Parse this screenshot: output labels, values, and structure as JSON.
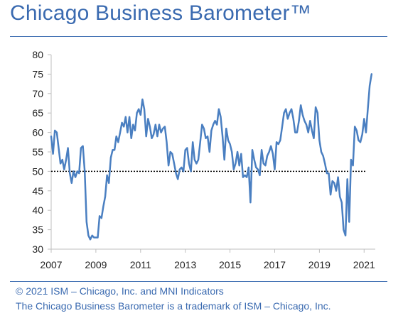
{
  "title": "Chicago Business Barometer™",
  "footer": {
    "line1": "© 2021 ISM – Chicago, Inc. and MNI Indicators",
    "line2": "The Chicago Business Barometer is a trademark of ISM – Chicago, Inc."
  },
  "colors": {
    "brand": "#3a6ab0",
    "series": "#4a7fc1",
    "reference": "#000000"
  },
  "chart_data": {
    "type": "line",
    "title": "",
    "xlabel": "",
    "ylabel": "",
    "ylim": [
      30,
      80
    ],
    "xlim": [
      2007.0,
      2021.5
    ],
    "yticks": [
      "30",
      "35",
      "40",
      "45",
      "50",
      "55",
      "60",
      "65",
      "70",
      "75",
      "80"
    ],
    "xticks": [
      "2007",
      "2009",
      "2011",
      "2013",
      "2015",
      "2017",
      "2019",
      "2021"
    ],
    "grid": false,
    "reference_line": {
      "y": 50,
      "style": "dotted"
    },
    "series": [
      {
        "x": [
          "2007-01",
          "2007-02",
          "2007-03",
          "2007-04",
          "2007-05",
          "2007-06",
          "2007-07",
          "2007-08",
          "2007-09",
          "2007-10",
          "2007-11",
          "2007-12",
          "2008-01",
          "2008-02",
          "2008-03",
          "2008-04",
          "2008-05",
          "2008-06",
          "2008-07",
          "2008-08",
          "2008-09",
          "2008-10",
          "2008-11",
          "2008-12",
          "2009-01",
          "2009-02",
          "2009-03",
          "2009-04",
          "2009-05",
          "2009-06",
          "2009-07",
          "2009-08",
          "2009-09",
          "2009-10",
          "2009-11",
          "2009-12",
          "2010-01",
          "2010-02",
          "2010-03",
          "2010-04",
          "2010-05",
          "2010-06",
          "2010-07",
          "2010-08",
          "2010-09",
          "2010-10",
          "2010-11",
          "2010-12",
          "2011-01",
          "2011-02",
          "2011-03",
          "2011-04",
          "2011-05",
          "2011-06",
          "2011-07",
          "2011-08",
          "2011-09",
          "2011-10",
          "2011-11",
          "2011-12",
          "2012-01",
          "2012-02",
          "2012-03",
          "2012-04",
          "2012-05",
          "2012-06",
          "2012-07",
          "2012-08",
          "2012-09",
          "2012-10",
          "2012-11",
          "2012-12",
          "2013-01",
          "2013-02",
          "2013-03",
          "2013-04",
          "2013-05",
          "2013-06",
          "2013-07",
          "2013-08",
          "2013-09",
          "2013-10",
          "2013-11",
          "2013-12",
          "2014-01",
          "2014-02",
          "2014-03",
          "2014-04",
          "2014-05",
          "2014-06",
          "2014-07",
          "2014-08",
          "2014-09",
          "2014-10",
          "2014-11",
          "2014-12",
          "2015-01",
          "2015-02",
          "2015-03",
          "2015-04",
          "2015-05",
          "2015-06",
          "2015-07",
          "2015-08",
          "2015-09",
          "2015-10",
          "2015-11",
          "2015-12",
          "2016-01",
          "2016-02",
          "2016-03",
          "2016-04",
          "2016-05",
          "2016-06",
          "2016-07",
          "2016-08",
          "2016-09",
          "2016-10",
          "2016-11",
          "2016-12",
          "2017-01",
          "2017-02",
          "2017-03",
          "2017-04",
          "2017-05",
          "2017-06",
          "2017-07",
          "2017-08",
          "2017-09",
          "2017-10",
          "2017-11",
          "2017-12",
          "2018-01",
          "2018-02",
          "2018-03",
          "2018-04",
          "2018-05",
          "2018-06",
          "2018-07",
          "2018-08",
          "2018-09",
          "2018-10",
          "2018-11",
          "2018-12",
          "2019-01",
          "2019-02",
          "2019-03",
          "2019-04",
          "2019-05",
          "2019-06",
          "2019-07",
          "2019-08",
          "2019-09",
          "2019-10",
          "2019-11",
          "2019-12",
          "2020-01",
          "2020-02",
          "2020-03",
          "2020-04",
          "2020-05",
          "2020-06",
          "2020-07",
          "2020-08",
          "2020-09",
          "2020-10",
          "2020-11",
          "2020-12",
          "2021-01",
          "2021-02",
          "2021-03",
          "2021-04",
          "2021-05"
        ],
        "values": [
          59,
          54.5,
          60.5,
          60,
          56,
          52,
          53,
          50.5,
          53,
          56,
          49.5,
          47,
          50,
          48.5,
          50,
          49.5,
          56,
          56.5,
          50,
          37,
          33.5,
          32.5,
          33.5,
          33,
          33,
          33,
          38.5,
          38,
          41,
          43.5,
          49,
          47,
          53.5,
          55.5,
          55.5,
          59,
          57.5,
          60,
          62.5,
          61.5,
          64,
          60,
          64,
          58.5,
          62,
          60.5,
          65,
          66,
          64.5,
          68.5,
          66,
          59,
          63.5,
          61.5,
          58.5,
          59.5,
          62,
          59,
          62,
          60,
          61,
          61.5,
          57.5,
          51.5,
          55,
          54.5,
          52,
          49.5,
          48,
          50.5,
          51,
          50,
          55.5,
          56,
          52,
          50,
          57.5,
          53,
          52,
          53,
          57.5,
          62,
          61,
          58.5,
          59,
          55,
          60.5,
          62,
          63,
          62,
          66,
          64,
          59,
          53,
          61,
          58,
          57,
          55,
          50.5,
          52,
          55,
          51.5,
          54.5,
          48.5,
          49,
          48.5,
          51,
          42,
          55.5,
          53,
          51,
          50.5,
          49,
          55.5,
          52,
          51.5,
          54,
          55,
          56.5,
          54.5,
          50.5,
          57.5,
          57,
          58,
          61.5,
          65,
          66,
          63.5,
          65,
          66,
          63.5,
          60,
          60,
          63,
          67,
          64.5,
          63,
          62,
          60,
          63,
          60.5,
          58.5,
          66.5,
          65,
          58,
          55,
          54,
          52,
          49.5,
          49.5,
          44,
          47.5,
          47,
          45,
          48.5,
          43.5,
          42,
          35,
          33.5,
          48,
          37,
          53,
          51.5,
          61.5,
          60.5,
          58,
          57.5,
          59.5,
          63.5,
          60,
          66,
          72,
          75
        ]
      }
    ]
  }
}
